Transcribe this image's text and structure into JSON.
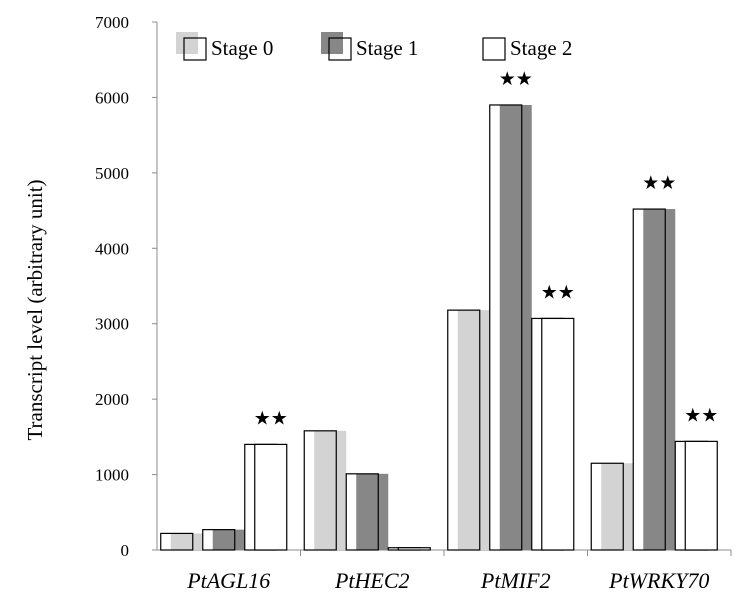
{
  "chart_data": {
    "type": "bar",
    "title": "",
    "xlabel": "",
    "ylabel": "Transcript level (arbitrary unit)",
    "ylim": [
      0,
      7000
    ],
    "yticks": [
      0,
      1000,
      2000,
      3000,
      4000,
      5000,
      6000,
      7000
    ],
    "grid": false,
    "legend_position": "top",
    "categories": [
      "PtAGL16",
      "PtHEC2",
      "PtMIF2",
      "PtWRKY70"
    ],
    "series": [
      {
        "name": "Stage 0",
        "color": "#d3d3d3",
        "values": [
          220,
          1580,
          3180,
          1150
        ]
      },
      {
        "name": "Stage 1",
        "color": "#878787",
        "values": [
          270,
          1010,
          5900,
          4520
        ]
      },
      {
        "name": "Stage 2",
        "color": "#ffffff",
        "values": [
          1400,
          30,
          3070,
          1440
        ]
      }
    ],
    "annotations": [
      {
        "category": "PtAGL16",
        "series": "Stage 2",
        "text": "★★"
      },
      {
        "category": "PtMIF2",
        "series": "Stage 1",
        "text": "★★"
      },
      {
        "category": "PtMIF2",
        "series": "Stage 2",
        "text": "★★"
      },
      {
        "category": "PtWRKY70",
        "series": "Stage 1",
        "text": "★★"
      },
      {
        "category": "PtWRKY70",
        "series": "Stage 2",
        "text": "★★"
      }
    ]
  }
}
